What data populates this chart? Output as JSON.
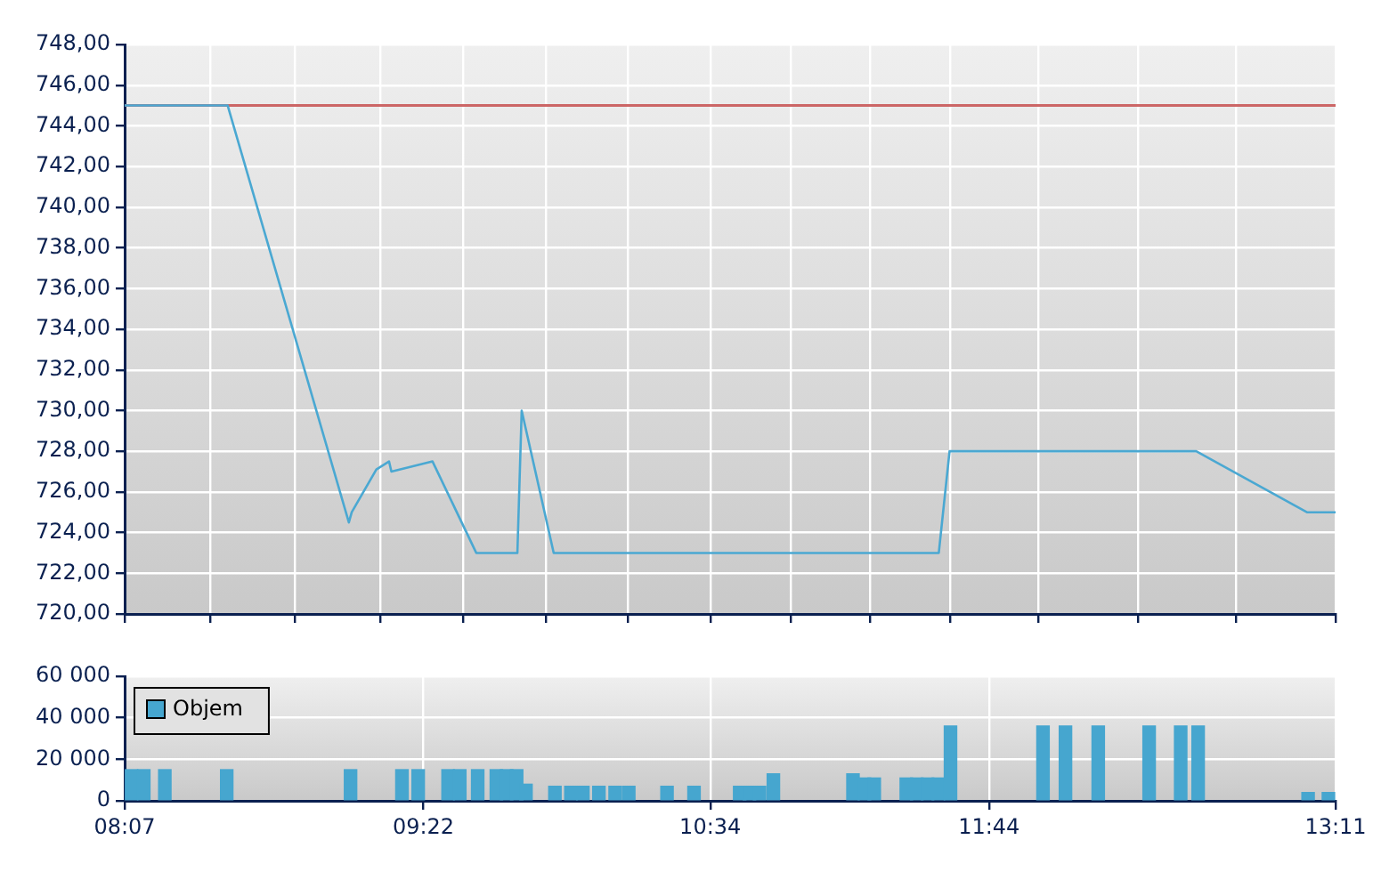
{
  "chart_data": [
    {
      "type": "line",
      "x": [
        8.117,
        8.548,
        9.055,
        9.067,
        9.17,
        9.223,
        9.233,
        9.405,
        9.588,
        9.76,
        9.778,
        9.912,
        11.523,
        11.568,
        12.6,
        13.063,
        13.183
      ],
      "series": [
        {
          "color": "#4aa8d2",
          "values": [
            745.0,
            745.0,
            724.5,
            725.0,
            727.1,
            727.5,
            727.0,
            727.5,
            723.0,
            723.0,
            730.0,
            723.0,
            723.0,
            728.0,
            728.0,
            725.0,
            725.0
          ]
        }
      ],
      "xlim": [
        8.117,
        13.183
      ],
      "xticks": [
        {
          "value": 8.117,
          "label": null
        },
        {
          "value": 8.477,
          "label": null
        },
        {
          "value": 8.828,
          "label": null
        },
        {
          "value": 9.188,
          "label": null
        },
        {
          "value": 9.532,
          "label": null
        },
        {
          "value": 9.88,
          "label": null
        },
        {
          "value": 10.222,
          "label": null
        },
        {
          "value": 10.568,
          "label": null
        },
        {
          "value": 10.905,
          "label": null
        },
        {
          "value": 11.235,
          "label": null
        },
        {
          "value": 11.572,
          "label": null
        },
        {
          "value": 11.94,
          "label": null
        },
        {
          "value": 12.358,
          "label": null
        },
        {
          "value": 12.768,
          "label": null
        },
        {
          "value": 13.183,
          "label": null
        }
      ],
      "ylim": [
        720,
        748
      ],
      "yticks": [
        {
          "value": 720,
          "label": "720,00"
        },
        {
          "value": 722,
          "label": "722,00"
        },
        {
          "value": 724,
          "label": "724,00"
        },
        {
          "value": 726,
          "label": "726,00"
        },
        {
          "value": 728,
          "label": "728,00"
        },
        {
          "value": 730,
          "label": "730,00"
        },
        {
          "value": 732,
          "label": "732,00"
        },
        {
          "value": 734,
          "label": "734,00"
        },
        {
          "value": 736,
          "label": "736,00"
        },
        {
          "value": 738,
          "label": "738,00"
        },
        {
          "value": 740,
          "label": "740,00"
        },
        {
          "value": 742,
          "label": "742,00"
        },
        {
          "value": 744,
          "label": "744,00"
        },
        {
          "value": 746,
          "label": "746,00"
        },
        {
          "value": 748,
          "label": "748,00"
        }
      ],
      "grid": true,
      "tick_labels": "y",
      "ref_lines": [
        {
          "axis": "y",
          "value": 745.0,
          "color": "#cc6666"
        }
      ]
    },
    {
      "type": "bar",
      "x": [
        8.146,
        8.197,
        8.285,
        8.544,
        9.062,
        9.277,
        9.345,
        9.47,
        9.519,
        9.594,
        9.672,
        9.715,
        9.757,
        9.796,
        9.917,
        9.984,
        10.034,
        10.101,
        10.169,
        10.226,
        10.386,
        10.499,
        10.69,
        10.731,
        10.773,
        10.831,
        11.164,
        11.212,
        11.253,
        11.387,
        11.431,
        11.476,
        11.521,
        11.572,
        11.959,
        12.053,
        12.19,
        12.403,
        12.535,
        12.608,
        13.068,
        13.153
      ],
      "series": [
        {
          "name": "Objem",
          "color": "#46a6cf",
          "values": [
            15000,
            15000,
            15000,
            15000,
            15000,
            15000,
            15000,
            15000,
            15000,
            15000,
            15000,
            15000,
            15000,
            8000,
            7000,
            7000,
            7000,
            7000,
            7000,
            7000,
            7000,
            7000,
            7000,
            7000,
            7000,
            13000,
            13000,
            11000,
            11000,
            11000,
            11000,
            11000,
            11000,
            36000,
            36000,
            36000,
            36000,
            36000,
            36000,
            36000,
            4000,
            4000
          ]
        }
      ],
      "xlim": [
        8.117,
        13.183
      ],
      "xticks": [
        {
          "value": 8.117,
          "label": "08:07"
        },
        {
          "value": 9.367,
          "label": "09:22"
        },
        {
          "value": 10.567,
          "label": "10:34"
        },
        {
          "value": 11.733,
          "label": "11:44"
        },
        {
          "value": 13.183,
          "label": "13:11"
        }
      ],
      "ylim": [
        0,
        60000
      ],
      "yticks": [
        0,
        {
          "value": 20000,
          "label": "20 000"
        },
        {
          "value": 40000,
          "label": "40 000"
        },
        {
          "value": 60000,
          "label": "60 000"
        }
      ],
      "grid": true,
      "legend": "top left"
    }
  ]
}
